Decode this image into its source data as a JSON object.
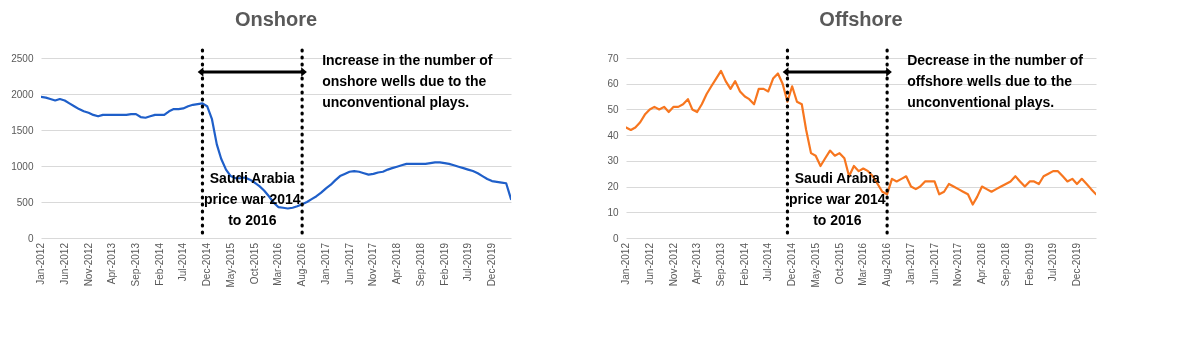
{
  "chart_data": [
    {
      "type": "line",
      "title": "Onshore",
      "x": [
        "2012-01",
        "2012-02",
        "2012-03",
        "2012-04",
        "2012-05",
        "2012-06",
        "2012-07",
        "2012-08",
        "2012-09",
        "2012-10",
        "2012-11",
        "2012-12",
        "2013-01",
        "2013-02",
        "2013-03",
        "2013-04",
        "2013-05",
        "2013-06",
        "2013-07",
        "2013-08",
        "2013-09",
        "2013-10",
        "2013-11",
        "2013-12",
        "2014-01",
        "2014-02",
        "2014-03",
        "2014-04",
        "2014-05",
        "2014-06",
        "2014-07",
        "2014-08",
        "2014-09",
        "2014-10",
        "2014-11",
        "2014-12",
        "2015-01",
        "2015-02",
        "2015-03",
        "2015-04",
        "2015-05",
        "2015-06",
        "2015-07",
        "2015-08",
        "2015-09",
        "2015-10",
        "2015-11",
        "2015-12",
        "2016-01",
        "2016-02",
        "2016-03",
        "2016-04",
        "2016-05",
        "2016-06",
        "2016-07",
        "2016-08",
        "2016-09",
        "2016-10",
        "2016-11",
        "2016-12",
        "2017-01",
        "2017-02",
        "2017-03",
        "2017-04",
        "2017-05",
        "2017-06",
        "2017-07",
        "2017-08",
        "2017-09",
        "2017-10",
        "2017-11",
        "2017-12",
        "2018-01",
        "2018-02",
        "2018-03",
        "2018-04",
        "2018-05",
        "2018-06",
        "2018-07",
        "2018-08",
        "2018-09",
        "2018-10",
        "2018-11",
        "2018-12",
        "2019-01",
        "2019-02",
        "2019-03",
        "2019-04",
        "2019-05",
        "2019-06",
        "2019-07",
        "2019-08",
        "2019-09",
        "2019-10",
        "2019-11",
        "2019-12",
        "2020-01",
        "2020-02",
        "2020-03",
        "2020-04"
      ],
      "series": [
        {
          "color": "#1f5fc9",
          "values": [
            1960,
            1950,
            1930,
            1910,
            1930,
            1910,
            1870,
            1830,
            1790,
            1760,
            1740,
            1710,
            1690,
            1710,
            1710,
            1710,
            1710,
            1710,
            1710,
            1720,
            1720,
            1680,
            1670,
            1690,
            1710,
            1710,
            1710,
            1760,
            1790,
            1790,
            1800,
            1830,
            1850,
            1860,
            1870,
            1830,
            1650,
            1300,
            1100,
            950,
            860,
            830,
            830,
            840,
            810,
            770,
            720,
            660,
            580,
            490,
            430,
            420,
            410,
            420,
            440,
            470,
            500,
            540,
            580,
            630,
            690,
            740,
            800,
            860,
            890,
            920,
            930,
            920,
            900,
            880,
            890,
            910,
            920,
            950,
            970,
            990,
            1010,
            1030,
            1030,
            1030,
            1030,
            1030,
            1040,
            1050,
            1050,
            1040,
            1030,
            1010,
            990,
            970,
            950,
            930,
            900,
            860,
            820,
            790,
            780,
            770,
            760,
            540
          ]
        }
      ],
      "xlim": [
        "2012-01",
        "2020-04"
      ],
      "xticks": [
        {
          "value": "2012-01",
          "label": "Jan-2012"
        },
        {
          "value": "2012-06",
          "label": "Jun-2012"
        },
        {
          "value": "2012-11",
          "label": "Nov-2012"
        },
        {
          "value": "2013-04",
          "label": "Apr-2013"
        },
        {
          "value": "2013-09",
          "label": "Sep-2013"
        },
        {
          "value": "2014-02",
          "label": "Feb-2014"
        },
        {
          "value": "2014-07",
          "label": "Jul-2014"
        },
        {
          "value": "2014-12",
          "label": "Dec-2014"
        },
        {
          "value": "2015-05",
          "label": "May-2015"
        },
        {
          "value": "2015-10",
          "label": "Oct-2015"
        },
        {
          "value": "2016-03",
          "label": "Mar-2016"
        },
        {
          "value": "2016-08",
          "label": "Aug-2016"
        },
        {
          "value": "2017-01",
          "label": "Jan-2017"
        },
        {
          "value": "2017-06",
          "label": "Jun-2017"
        },
        {
          "value": "2017-11",
          "label": "Nov-2017"
        },
        {
          "value": "2018-04",
          "label": "Apr-2018"
        },
        {
          "value": "2018-09",
          "label": "Sep-2018"
        },
        {
          "value": "2019-02",
          "label": "Feb-2019"
        },
        {
          "value": "2019-07",
          "label": "Jul-2019"
        },
        {
          "value": "2019-12",
          "label": "Dec-2019"
        }
      ],
      "ylim": [
        0,
        2500
      ],
      "yticks": [
        0,
        500,
        1000,
        1500,
        2000,
        2500
      ],
      "grid": "y",
      "ref_lines": [
        {
          "axis": "x",
          "value": "2014-11",
          "color": "#000000",
          "line_style": "dotted"
        },
        {
          "axis": "x",
          "value": "2016-08",
          "color": "#000000",
          "line_style": "dotted"
        }
      ],
      "annotations": [
        "Increase in the number of onshore wells due to the unconventional plays.",
        "Saudi Arabia price war 2014 to 2016"
      ]
    },
    {
      "type": "line",
      "title": "Offshore",
      "x": [
        "2012-01",
        "2012-02",
        "2012-03",
        "2012-04",
        "2012-05",
        "2012-06",
        "2012-07",
        "2012-08",
        "2012-09",
        "2012-10",
        "2012-11",
        "2012-12",
        "2013-01",
        "2013-02",
        "2013-03",
        "2013-04",
        "2013-05",
        "2013-06",
        "2013-07",
        "2013-08",
        "2013-09",
        "2013-10",
        "2013-11",
        "2013-12",
        "2014-01",
        "2014-02",
        "2014-03",
        "2014-04",
        "2014-05",
        "2014-06",
        "2014-07",
        "2014-08",
        "2014-09",
        "2014-10",
        "2014-11",
        "2014-12",
        "2015-01",
        "2015-02",
        "2015-03",
        "2015-04",
        "2015-05",
        "2015-06",
        "2015-07",
        "2015-08",
        "2015-09",
        "2015-10",
        "2015-11",
        "2015-12",
        "2016-01",
        "2016-02",
        "2016-03",
        "2016-04",
        "2016-05",
        "2016-06",
        "2016-07",
        "2016-08",
        "2016-09",
        "2016-10",
        "2016-11",
        "2016-12",
        "2017-01",
        "2017-02",
        "2017-03",
        "2017-04",
        "2017-05",
        "2017-06",
        "2017-07",
        "2017-08",
        "2017-09",
        "2017-10",
        "2017-11",
        "2017-12",
        "2018-01",
        "2018-02",
        "2018-03",
        "2018-04",
        "2018-05",
        "2018-06",
        "2018-07",
        "2018-08",
        "2018-09",
        "2018-10",
        "2018-11",
        "2018-12",
        "2019-01",
        "2019-02",
        "2019-03",
        "2019-04",
        "2019-05",
        "2019-06",
        "2019-07",
        "2019-08",
        "2019-09",
        "2019-10",
        "2019-11",
        "2019-12",
        "2020-01",
        "2020-02",
        "2020-03",
        "2020-04"
      ],
      "series": [
        {
          "color": "#f7761f",
          "values": [
            43,
            42,
            43,
            45,
            48,
            50,
            51,
            50,
            51,
            49,
            51,
            51,
            52,
            54,
            50,
            49,
            52,
            56,
            59,
            62,
            65,
            61,
            58,
            61,
            57,
            55,
            54,
            52,
            58,
            58,
            57,
            62,
            64,
            60,
            53,
            59,
            53,
            52,
            42,
            33,
            32,
            28,
            31,
            34,
            32,
            33,
            31,
            24,
            28,
            26,
            27,
            26,
            24,
            21,
            18,
            17,
            23,
            22,
            23,
            24,
            20,
            19,
            20,
            22,
            22,
            22,
            17,
            18,
            21,
            20,
            19,
            18,
            17,
            13,
            16,
            20,
            19,
            18,
            19,
            20,
            21,
            22,
            24,
            22,
            20,
            22,
            22,
            21,
            24,
            25,
            26,
            26,
            24,
            22,
            23,
            21,
            23,
            21,
            19,
            17
          ]
        }
      ],
      "xlim": [
        "2012-01",
        "2020-04"
      ],
      "xticks": [
        {
          "value": "2012-01",
          "label": "Jan-2012"
        },
        {
          "value": "2012-06",
          "label": "Jun-2012"
        },
        {
          "value": "2012-11",
          "label": "Nov-2012"
        },
        {
          "value": "2013-04",
          "label": "Apr-2013"
        },
        {
          "value": "2013-09",
          "label": "Sep-2013"
        },
        {
          "value": "2014-02",
          "label": "Feb-2014"
        },
        {
          "value": "2014-07",
          "label": "Jul-2014"
        },
        {
          "value": "2014-12",
          "label": "Dec-2014"
        },
        {
          "value": "2015-05",
          "label": "May-2015"
        },
        {
          "value": "2015-10",
          "label": "Oct-2015"
        },
        {
          "value": "2016-03",
          "label": "Mar-2016"
        },
        {
          "value": "2016-08",
          "label": "Aug-2016"
        },
        {
          "value": "2017-01",
          "label": "Jan-2017"
        },
        {
          "value": "2017-06",
          "label": "Jun-2017"
        },
        {
          "value": "2017-11",
          "label": "Nov-2017"
        },
        {
          "value": "2018-04",
          "label": "Apr-2018"
        },
        {
          "value": "2018-09",
          "label": "Sep-2018"
        },
        {
          "value": "2019-02",
          "label": "Feb-2019"
        },
        {
          "value": "2019-07",
          "label": "Jul-2019"
        },
        {
          "value": "2019-12",
          "label": "Dec-2019"
        }
      ],
      "ylim": [
        0,
        70
      ],
      "yticks": [
        0,
        10,
        20,
        30,
        40,
        50,
        60,
        70
      ],
      "grid": "y",
      "ref_lines": [
        {
          "axis": "x",
          "value": "2014-11",
          "color": "#000000",
          "line_style": "dotted"
        },
        {
          "axis": "x",
          "value": "2016-08",
          "color": "#000000",
          "line_style": "dotted"
        }
      ],
      "annotations": [
        "Decrease in the number of offshore wells due to the unconventional plays.",
        "Saudi Arabia price war 2014 to 2016"
      ]
    }
  ]
}
